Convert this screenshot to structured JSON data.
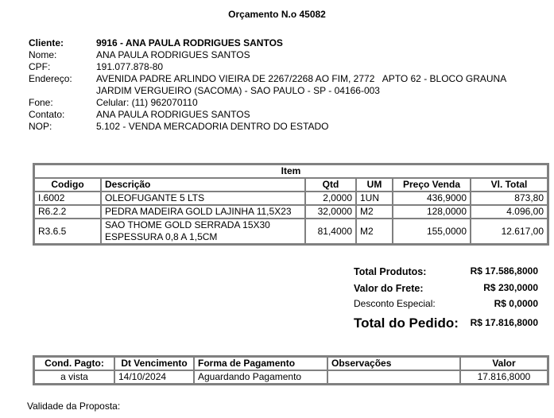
{
  "title": "Orçamento N.o 45082",
  "client": {
    "cliente_label": "Cliente:",
    "cliente": "9916 - ANA PAULA RODRIGUES SANTOS",
    "nome_label": "Nome:",
    "nome": "ANA PAULA RODRIGUES SANTOS",
    "cpf_label": "CPF:",
    "cpf": "191.077.878-80",
    "endereco_label": "Endereço:",
    "endereco1": "AVENIDA PADRE ARLINDO VIEIRA DE 2267/2268 AO FIM, 2772   APTO 62 - BLOCO GRAUNA",
    "endereco2": "JARDIM VERGUEIRO (SACOMA) - SAO PAULO - SP - 04166-003",
    "fone_label": "Fone:",
    "fone": "Celular: (11) 962070110",
    "contato_label": "Contato:",
    "contato": "ANA PAULA RODRIGUES SANTOS",
    "nop_label": "NOP:",
    "nop": "5.102 - VENDA MERCADORIA DENTRO DO ESTADO"
  },
  "items": {
    "title": "Item",
    "headers": [
      "Codigo",
      "Descrição",
      "Qtd",
      "UM",
      "Preço Venda",
      "Vl. Total"
    ],
    "rows": [
      {
        "codigo": "I.6002",
        "descricao": "OLEOFUGANTE 5 LTS",
        "descricao2": "",
        "qtd": "2,0000",
        "um": "1UN",
        "preco": "436,9000",
        "total": "873,80"
      },
      {
        "codigo": "R6.2.2",
        "descricao": "PEDRA MADEIRA GOLD LAJINHA 11,5X23",
        "descricao2": "",
        "qtd": "32,0000",
        "um": "M2",
        "preco": "128,0000",
        "total": "4.096,00"
      },
      {
        "codigo": "R3.6.5",
        "descricao": "SAO THOME GOLD SERRADA 15X30",
        "descricao2": "ESPESSURA 0,8 A 1,5CM",
        "qtd": "81,4000",
        "um": "M2",
        "preco": "155,0000",
        "total": "12.617,00"
      }
    ]
  },
  "totals": {
    "produtos_label": "Total Produtos:",
    "produtos": "R$ 17.586,8000",
    "frete_label": "Valor do Frete:",
    "frete": "R$ 230,0000",
    "desconto_label": "Desconto Especial:",
    "desconto": "R$ 0,0000",
    "pedido_label": "Total do Pedido:",
    "pedido": "R$ 17.816,8000"
  },
  "payment": {
    "headers": [
      "Cond. Pagto:",
      "Dt Vencimento",
      "Forma de Pagamento",
      "Observações",
      "Valor"
    ],
    "row": {
      "cond": "a vista",
      "vencimento": "14/10/2024",
      "forma": "Aguardando Pagamento",
      "obs": "",
      "valor": "17.816,8000"
    }
  },
  "validade_label": "Validade da Proposta:"
}
